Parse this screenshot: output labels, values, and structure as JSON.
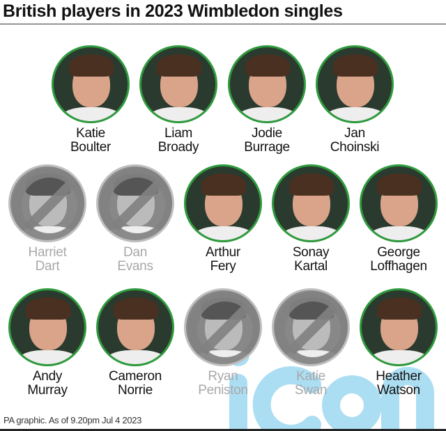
{
  "title": "British players in 2023 Wimbledon singles",
  "footer": "PA graphic. As of 9.20pm Jul 4 2023",
  "watermark": "iconic",
  "colors": {
    "ring": "#2e9a3c",
    "eliminated_text": "#a8a8a8",
    "watermark": "#8fd3ee"
  },
  "rows": [
    [
      {
        "first": "Katie",
        "last": "Boulter",
        "eliminated": false
      },
      {
        "first": "Liam",
        "last": "Broady",
        "eliminated": false
      },
      {
        "first": "Jodie",
        "last": "Burrage",
        "eliminated": false
      },
      {
        "first": "Jan",
        "last": "Choinski",
        "eliminated": false
      }
    ],
    [
      {
        "first": "Harriet",
        "last": "Dart",
        "eliminated": true
      },
      {
        "first": "Dan",
        "last": "Evans",
        "eliminated": true
      },
      {
        "first": "Arthur",
        "last": "Fery",
        "eliminated": false
      },
      {
        "first": "Sonay",
        "last": "Kartal",
        "eliminated": false
      },
      {
        "first": "George",
        "last": "Loffhagen",
        "eliminated": false
      }
    ],
    [
      {
        "first": "Andy",
        "last": "Murray",
        "eliminated": false
      },
      {
        "first": "Cameron",
        "last": "Norrie",
        "eliminated": false
      },
      {
        "first": "Ryan",
        "last": "Peniston",
        "eliminated": true
      },
      {
        "first": "Katie",
        "last": "Swan",
        "eliminated": true
      },
      {
        "first": "Heather",
        "last": "Watson",
        "eliminated": false
      }
    ]
  ]
}
